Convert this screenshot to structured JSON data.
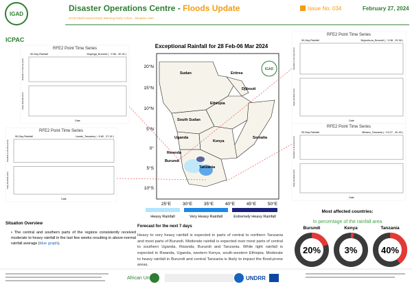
{
  "header": {
    "logo": "IGAD",
    "org": "ICPAC",
    "title": "Disaster Operations Centre - ",
    "title_highlight": "Floods Update",
    "subtitle": "IGAD Multi-Hazard Early Warning Early Action - Situation Alert",
    "issue": "Issue No. 034",
    "date": "February 27, 2024"
  },
  "time_series": {
    "heading": "RFE2 Point Time Series",
    "legend": "90-Day Rainfall",
    "upper_ylabel": "Rainfall vs Normal (mm)",
    "lower_ylabel": "Daily Rainfall (mm)",
    "xlabel": "Date",
    "stations": [
      "Muyinga_Burundi ( −2.85 , 30.32 )",
      "Liwale_Tanzania ( −9.80 , 37.92 )",
      "Bujumbura_Burundi ( −3.38 , 29.36 )",
      "Mtwara_Tanzania ( −10.27 , 40.18 )"
    ]
  },
  "map": {
    "title": "Exceptional Rainfall for 28 Feb-06 Mar 2024",
    "logo": "IGAD",
    "countries": [
      "Sudan",
      "Eritrea",
      "Djibouti",
      "Ethiopia",
      "South Sudan",
      "Somalia",
      "Uganda",
      "Kenya",
      "Rwanda",
      "Burundi",
      "Tanzania"
    ],
    "lat_labels": [
      "20°N",
      "15°N",
      "10°N",
      "5°N",
      "0°",
      "5°S",
      "10°S"
    ],
    "lon_labels": [
      "25°E",
      "30°E",
      "35°E",
      "40°E",
      "45°E",
      "50°E"
    ],
    "legend": [
      "Heavy Rainfall",
      "Very Heavy Rainfall",
      "Extremely Heavy Rainfall"
    ]
  },
  "situation": {
    "heading": "Situation Overview",
    "text": "The central and southern parts of the regions consistently received moderate to heavy rainfall in the last few weeks resulting in above-normal rainfall average (",
    "link": "blue graph",
    "text_end": ")."
  },
  "forecast": {
    "heading": "Forecast for the next 7 days",
    "text": "Heavy to very heavy rainfall is expected in parts of central to northern Tanzania and most parts of Burundi.  Moderate rainfall is expected over most parts of central to southern Uganda, Rwanda, Burundi and Tanzania. While light rainfall is expected in Rwanda, Uganda, western Kenya, south-western Ethiopia. Moderate to heavy rainfall in Burundi and central Tanzania is likely to impact the flood-prone areas."
  },
  "affected": {
    "heading": "Most affected countries:",
    "subheading": "In percentage of the rainfall area",
    "countries": [
      {
        "name": "Burundi",
        "value": 20,
        "value_label": "20%"
      },
      {
        "name": "Kenya",
        "value": 3,
        "value_label": "3%"
      },
      {
        "name": "Tanzania",
        "value": 40,
        "value_label": "40%"
      }
    ]
  },
  "footer": {
    "partners": [
      "African Union",
      "UNDRR"
    ]
  }
}
